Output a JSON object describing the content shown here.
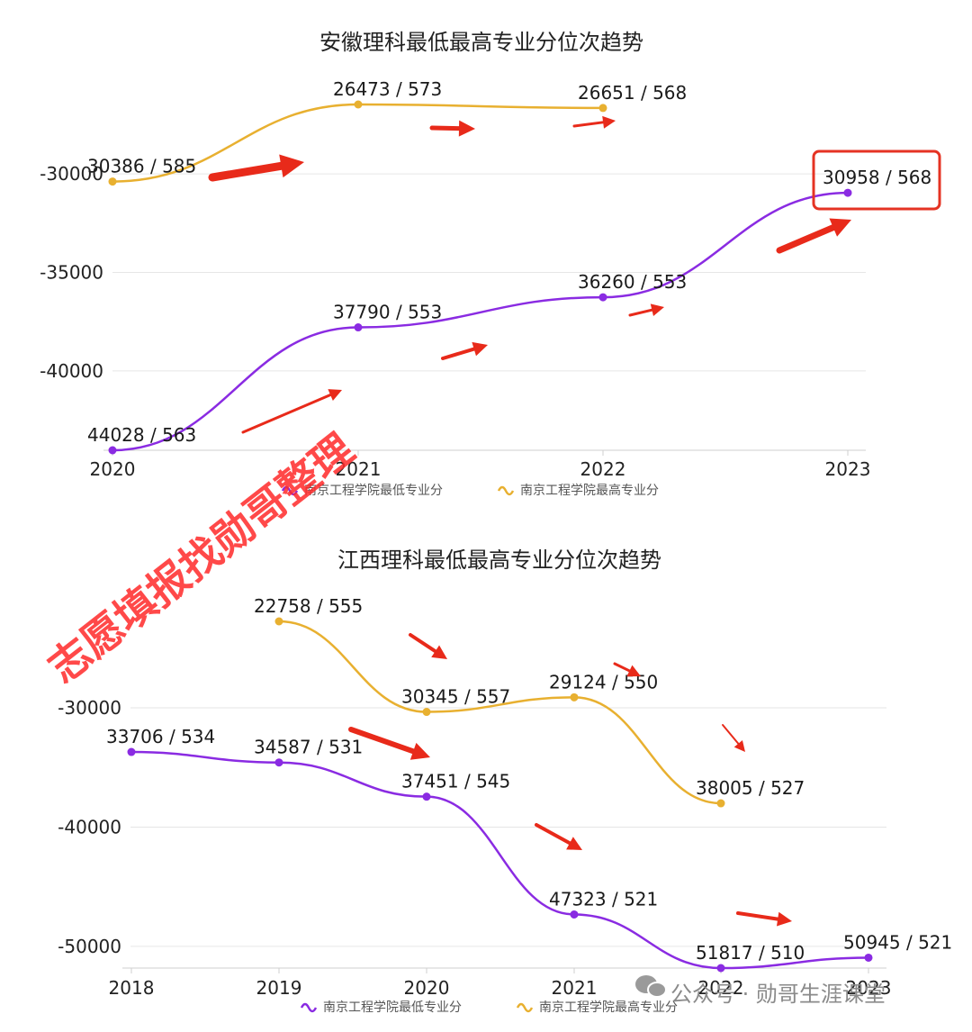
{
  "chart_data": [
    {
      "type": "line",
      "title": "安徽理科最低最高专业分位次趋势",
      "categories": [
        "2020",
        "2021",
        "2022",
        "2023"
      ],
      "y_ticks": [
        "-30000",
        "-35000",
        "-40000"
      ],
      "ylim": [
        -44028,
        -26473
      ],
      "grid": true,
      "legend_position": "bottom",
      "series": [
        {
          "name": "南京工程学院最低专业分",
          "color": "#8a2be2",
          "values": [
            -44028,
            -37790,
            -36260,
            -30958
          ],
          "labels": [
            "44028 / 563",
            "37790 / 553",
            "36260 / 553",
            "30958 / 568"
          ]
        },
        {
          "name": "南京工程学院最高专业分",
          "color": "#e8b030",
          "values": [
            -30386,
            -26473,
            -26651,
            null
          ],
          "labels": [
            "30386 / 585",
            "26473 / 573",
            "26651 / 568",
            ""
          ]
        }
      ]
    },
    {
      "type": "line",
      "title": "江西理科最低最高专业分位次趋势",
      "categories": [
        "2018",
        "2019",
        "2020",
        "2021",
        "2022",
        "2023"
      ],
      "y_ticks": [
        "-30000",
        "-40000",
        "-50000"
      ],
      "ylim": [
        -51817,
        -22758
      ],
      "grid": true,
      "legend_position": "bottom",
      "series": [
        {
          "name": "南京工程学院最低专业分",
          "color": "#8a2be2",
          "values": [
            -33706,
            -34587,
            -37451,
            -47323,
            -51817,
            -50945
          ],
          "labels": [
            "33706 / 534",
            "34587 / 531",
            "37451 / 545",
            "47323 / 521",
            "51817 / 510",
            "50945 / 521"
          ]
        },
        {
          "name": "南京工程学院最高专业分",
          "color": "#e8b030",
          "values": [
            null,
            -22758,
            -30345,
            -29124,
            -38005,
            null
          ],
          "labels": [
            "",
            "22758 / 555",
            "30345 / 557",
            "29124 / 550",
            "38005 / 527",
            ""
          ]
        }
      ]
    }
  ],
  "watermark": "志愿填报找勋哥整理",
  "credit": "公众号 · 勋哥生涯课堂",
  "credit_icon": "wechat-icon"
}
